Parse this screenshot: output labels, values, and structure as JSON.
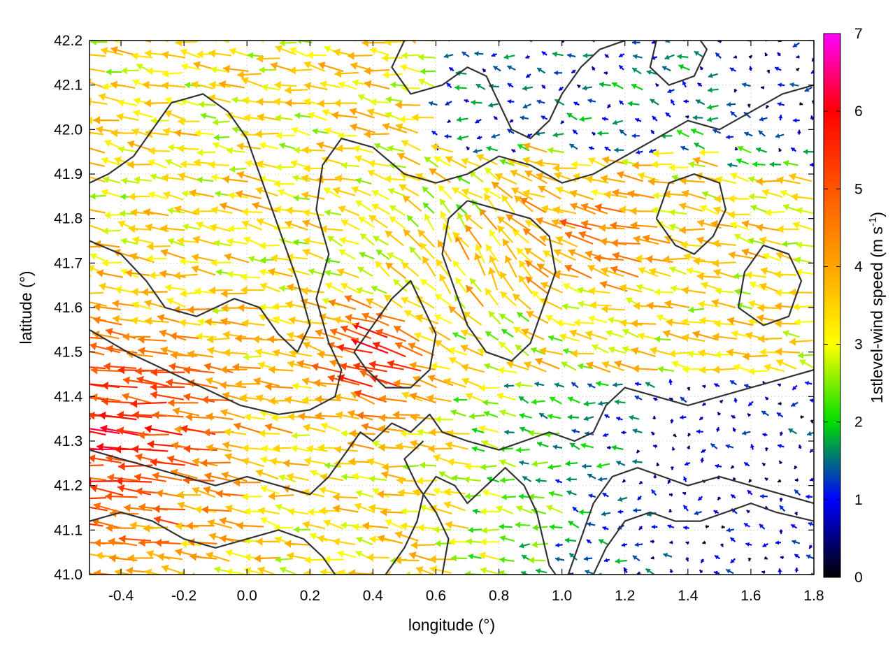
{
  "chart_data": {
    "type": "vector-field",
    "xlabel": "longitude (°)",
    "ylabel": "latitude (°)",
    "colorbar_label_main": "1stlevel-wind speed (m s",
    "colorbar_label_sup": "-1",
    "colorbar_label_close": ")",
    "xlim": [
      -0.5,
      1.8
    ],
    "ylim": [
      41.0,
      42.2
    ],
    "x_ticks": [
      -0.4,
      -0.2,
      0.0,
      0.2,
      0.4,
      0.6,
      0.8,
      1.0,
      1.2,
      1.4,
      1.6,
      1.8
    ],
    "x_tick_labels": [
      "-0.4",
      "-0.2",
      "0.0",
      "0.2",
      "0.4",
      "0.6",
      "0.8",
      "1.0",
      "1.2",
      "1.4",
      "1.6",
      "1.8"
    ],
    "y_ticks": [
      41.0,
      41.1,
      41.2,
      41.3,
      41.4,
      41.5,
      41.6,
      41.7,
      41.8,
      41.9,
      42.0,
      42.1,
      42.2
    ],
    "y_tick_labels": [
      "41.0",
      "41.1",
      "41.2",
      "41.3",
      "41.4",
      "41.5",
      "41.6",
      "41.7",
      "41.8",
      "41.9",
      "42.0",
      "42.1",
      "42.2"
    ],
    "colorbar_range": [
      0,
      7
    ],
    "colorbar_ticks": [
      0,
      1,
      2,
      3,
      4,
      5,
      6,
      7
    ],
    "colorbar_tick_labels": [
      "0",
      "1",
      "2",
      "3",
      "4",
      "5",
      "6",
      "7"
    ],
    "colormap": [
      {
        "value": 0,
        "color": "#000000"
      },
      {
        "value": 1,
        "color": "#0000ff"
      },
      {
        "value": 2,
        "color": "#00dd00"
      },
      {
        "value": 3,
        "color": "#ffff00"
      },
      {
        "value": 4,
        "color": "#ffa500"
      },
      {
        "value": 5,
        "color": "#ff5500"
      },
      {
        "value": 6,
        "color": "#ff0000"
      },
      {
        "value": 7,
        "color": "#ff00ff"
      }
    ],
    "grid": true,
    "contour_color": "#333333",
    "contours": [
      [
        [
          -0.5,
          41.55
        ],
        [
          -0.38,
          41.5
        ],
        [
          -0.26,
          41.46
        ],
        [
          -0.14,
          41.42
        ],
        [
          -0.02,
          41.38
        ],
        [
          0.1,
          41.36
        ],
        [
          0.2,
          41.37
        ],
        [
          0.28,
          41.4
        ],
        [
          0.3,
          41.46
        ],
        [
          0.26,
          41.52
        ],
        [
          0.22,
          41.62
        ],
        [
          0.26,
          41.72
        ],
        [
          0.22,
          41.82
        ],
        [
          0.24,
          41.92
        ],
        [
          0.3,
          41.98
        ],
        [
          0.4,
          41.96
        ],
        [
          0.5,
          41.9
        ],
        [
          0.6,
          41.88
        ],
        [
          0.7,
          41.9
        ],
        [
          0.8,
          41.94
        ],
        [
          0.9,
          41.92
        ],
        [
          1.0,
          41.88
        ],
        [
          1.1,
          41.9
        ],
        [
          1.2,
          41.94
        ],
        [
          1.3,
          41.98
        ],
        [
          1.4,
          42.02
        ],
        [
          1.5,
          42.0
        ],
        [
          1.6,
          42.04
        ],
        [
          1.7,
          42.08
        ],
        [
          1.8,
          42.1
        ]
      ],
      [
        [
          -0.5,
          41.75
        ],
        [
          -0.4,
          41.72
        ],
        [
          -0.32,
          41.66
        ],
        [
          -0.26,
          41.6
        ],
        [
          -0.16,
          41.58
        ],
        [
          -0.04,
          41.62
        ],
        [
          0.04,
          41.6
        ],
        [
          0.1,
          41.54
        ],
        [
          0.16,
          41.5
        ],
        [
          0.2,
          41.56
        ],
        [
          0.16,
          41.66
        ],
        [
          0.12,
          41.74
        ],
        [
          0.08,
          41.82
        ],
        [
          0.04,
          41.9
        ],
        [
          0.0,
          41.98
        ],
        [
          -0.06,
          42.04
        ],
        [
          -0.14,
          42.08
        ],
        [
          -0.24,
          42.06
        ],
        [
          -0.3,
          42.0
        ],
        [
          -0.36,
          41.94
        ],
        [
          -0.44,
          41.9
        ],
        [
          -0.5,
          41.88
        ]
      ],
      [
        [
          -0.5,
          41.28
        ],
        [
          -0.4,
          41.26
        ],
        [
          -0.3,
          41.24
        ],
        [
          -0.2,
          41.22
        ],
        [
          -0.1,
          41.2
        ],
        [
          0.0,
          41.22
        ],
        [
          0.1,
          41.2
        ],
        [
          0.2,
          41.18
        ],
        [
          0.26,
          41.22
        ],
        [
          0.32,
          41.28
        ],
        [
          0.36,
          41.32
        ],
        [
          0.4,
          41.3
        ],
        [
          0.46,
          41.34
        ],
        [
          0.52,
          41.32
        ],
        [
          0.58,
          41.36
        ],
        [
          0.62,
          41.32
        ],
        [
          0.7,
          41.3
        ],
        [
          0.8,
          41.28
        ],
        [
          0.88,
          41.3
        ],
        [
          0.96,
          41.32
        ],
        [
          1.04,
          41.3
        ],
        [
          1.1,
          41.32
        ],
        [
          1.14,
          41.38
        ],
        [
          1.2,
          41.42
        ],
        [
          1.3,
          41.4
        ],
        [
          1.4,
          41.38
        ],
        [
          1.5,
          41.4
        ],
        [
          1.6,
          41.42
        ],
        [
          1.7,
          41.44
        ],
        [
          1.8,
          41.46
        ]
      ],
      [
        [
          0.44,
          41.0
        ],
        [
          0.5,
          41.06
        ],
        [
          0.54,
          41.12
        ],
        [
          0.56,
          41.18
        ],
        [
          0.6,
          41.22
        ],
        [
          0.66,
          41.2
        ],
        [
          0.7,
          41.16
        ],
        [
          0.76,
          41.2
        ],
        [
          0.82,
          41.24
        ],
        [
          0.88,
          41.2
        ],
        [
          0.92,
          41.14
        ],
        [
          0.94,
          41.08
        ],
        [
          0.96,
          41.02
        ],
        [
          0.98,
          41.0
        ]
      ],
      [
        [
          1.02,
          41.0
        ],
        [
          1.06,
          41.08
        ],
        [
          1.1,
          41.16
        ],
        [
          1.16,
          41.22
        ],
        [
          1.24,
          41.24
        ],
        [
          1.32,
          41.22
        ],
        [
          1.4,
          41.2
        ],
        [
          1.5,
          41.22
        ],
        [
          1.6,
          41.2
        ],
        [
          1.7,
          41.18
        ],
        [
          1.8,
          41.16
        ]
      ],
      [
        [
          1.1,
          41.0
        ],
        [
          1.14,
          41.06
        ],
        [
          1.2,
          41.12
        ],
        [
          1.28,
          41.14
        ],
        [
          1.36,
          41.12
        ],
        [
          1.44,
          41.12
        ],
        [
          1.52,
          41.14
        ],
        [
          1.6,
          41.16
        ],
        [
          1.68,
          41.14
        ],
        [
          1.8,
          41.12
        ]
      ],
      [
        [
          0.62,
          41.0
        ],
        [
          0.64,
          41.08
        ],
        [
          0.6,
          41.14
        ],
        [
          0.54,
          41.2
        ],
        [
          0.5,
          41.26
        ],
        [
          0.56,
          41.3
        ]
      ],
      [
        [
          -0.5,
          41.12
        ],
        [
          -0.4,
          41.14
        ],
        [
          -0.3,
          41.12
        ],
        [
          -0.2,
          41.08
        ],
        [
          -0.1,
          41.06
        ],
        [
          0.0,
          41.08
        ],
        [
          0.1,
          41.1
        ],
        [
          0.18,
          41.08
        ],
        [
          0.24,
          41.04
        ],
        [
          0.28,
          41.0
        ]
      ],
      [
        [
          0.5,
          42.2
        ],
        [
          0.46,
          42.14
        ],
        [
          0.52,
          42.08
        ],
        [
          0.62,
          42.1
        ],
        [
          0.7,
          42.14
        ],
        [
          0.76,
          42.12
        ],
        [
          0.8,
          42.06
        ],
        [
          0.84,
          42.0
        ],
        [
          0.9,
          41.98
        ],
        [
          0.96,
          42.02
        ],
        [
          1.0,
          42.08
        ],
        [
          1.06,
          42.14
        ],
        [
          1.12,
          42.18
        ],
        [
          1.2,
          42.2
        ]
      ],
      [
        [
          0.7,
          41.84
        ],
        [
          0.8,
          41.82
        ],
        [
          0.9,
          41.8
        ],
        [
          0.96,
          41.76
        ],
        [
          0.98,
          41.68
        ],
        [
          0.94,
          41.6
        ],
        [
          0.9,
          41.52
        ],
        [
          0.84,
          41.48
        ],
        [
          0.76,
          41.5
        ],
        [
          0.7,
          41.56
        ],
        [
          0.66,
          41.64
        ],
        [
          0.62,
          41.72
        ],
        [
          0.64,
          41.8
        ],
        [
          0.7,
          41.84
        ]
      ],
      [
        [
          1.3,
          41.8
        ],
        [
          1.36,
          41.74
        ],
        [
          1.42,
          41.72
        ],
        [
          1.48,
          41.76
        ],
        [
          1.52,
          41.82
        ],
        [
          1.5,
          41.88
        ],
        [
          1.42,
          41.9
        ],
        [
          1.34,
          41.88
        ],
        [
          1.3,
          41.8
        ]
      ],
      [
        [
          1.56,
          41.6
        ],
        [
          1.64,
          41.56
        ],
        [
          1.72,
          41.58
        ],
        [
          1.76,
          41.66
        ],
        [
          1.72,
          41.72
        ],
        [
          1.64,
          41.74
        ],
        [
          1.58,
          41.68
        ],
        [
          1.56,
          41.6
        ]
      ],
      [
        [
          0.34,
          41.5
        ],
        [
          0.4,
          41.56
        ],
        [
          0.46,
          41.62
        ],
        [
          0.52,
          41.66
        ],
        [
          0.56,
          41.6
        ],
        [
          0.6,
          41.54
        ],
        [
          0.58,
          41.46
        ],
        [
          0.52,
          41.42
        ],
        [
          0.44,
          41.42
        ],
        [
          0.38,
          41.46
        ],
        [
          0.34,
          41.5
        ]
      ],
      [
        [
          1.3,
          42.2
        ],
        [
          1.28,
          42.14
        ],
        [
          1.34,
          42.1
        ],
        [
          1.42,
          42.12
        ],
        [
          1.46,
          42.18
        ],
        [
          1.44,
          42.2
        ]
      ]
    ]
  }
}
